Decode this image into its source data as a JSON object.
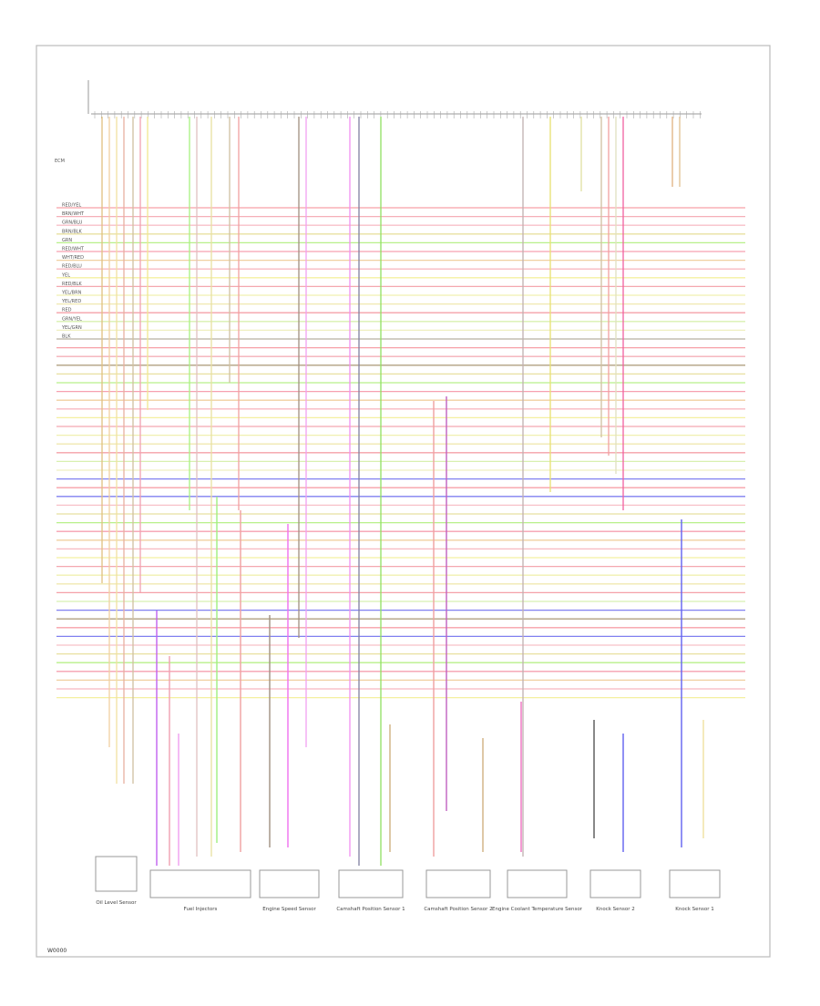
{
  "diagram": {
    "footer": "W0000",
    "connector_label": "ECM",
    "wire_labels": [
      "RED/YEL",
      "BRN/WHT",
      "GRN/BLU",
      "BRN/BLK",
      "GRN",
      "RED/WHT",
      "WHT/RED",
      "RED/BLU",
      "YEL",
      "RED/BLK",
      "YEL/BRN",
      "YEL/RED",
      "RED",
      "GRN/YEL",
      "YEL/GRN",
      "BLK"
    ],
    "components": [
      {
        "label": "Oil Level Sensor"
      },
      {
        "label": "Fuel Injectors"
      },
      {
        "label": "Engine Speed Sensor"
      },
      {
        "label": "Camshaft Position Sensor 1"
      },
      {
        "label": "Camshaft Position Sensor 2"
      },
      {
        "label": "Engine Coolant Temperature Sensor"
      },
      {
        "label": "Knock Sensor 2"
      },
      {
        "label": "Knock Sensor 1"
      }
    ]
  }
}
